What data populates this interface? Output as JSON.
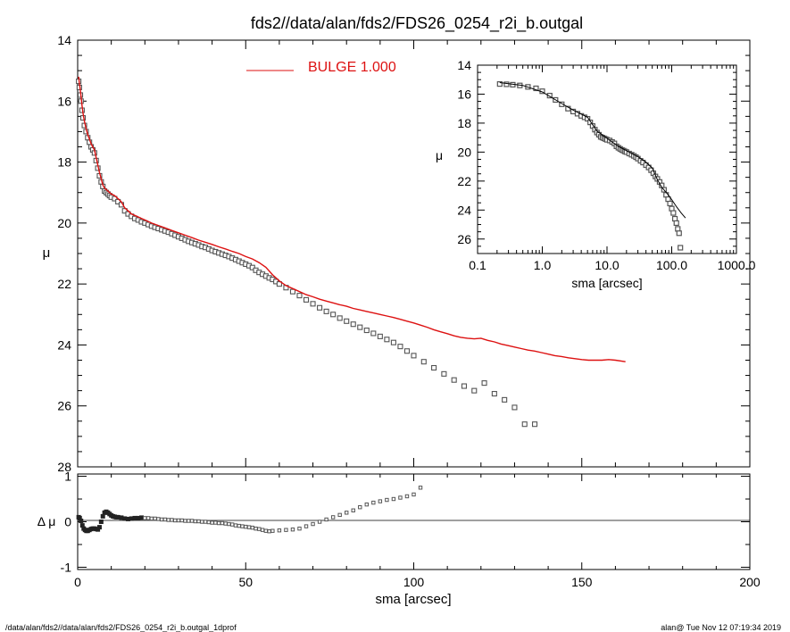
{
  "title": "fds2//data/alan/fds2/FDS26_0254_r2i_b.outgal",
  "footer": {
    "left": "/data/alan/fds2//data/alan/fds2/FDS26_0254_r2i_b.outgal_1dprof",
    "right": "alan@  Tue Nov 12 07:19:34 2019"
  },
  "colors": {
    "model": "#dd1111",
    "data": "#555555",
    "axis": "#000000"
  },
  "chart_data": [
    {
      "id": "main",
      "type": "scatter",
      "xlim": [
        0,
        200
      ],
      "ylim": [
        28,
        14
      ],
      "ylabel": "μ",
      "yticks": [
        "14",
        "16",
        "18",
        "20",
        "22",
        "24",
        "26",
        "28"
      ],
      "legend": {
        "label": "BULGE  1.000",
        "placement": "top-center"
      },
      "series": [
        {
          "name": "data",
          "x": [
            0.3,
            0.5,
            0.8,
            1.0,
            1.3,
            1.6,
            2.0,
            2.5,
            3.0,
            3.5,
            4.0,
            4.5,
            5.0,
            5.5,
            6.0,
            6.5,
            7.0,
            7.5,
            8.0,
            8.5,
            9.0,
            9.5,
            10.0,
            11.0,
            12.0,
            13.0,
            14.0,
            15.0,
            16.0,
            17.0,
            18.0,
            19.0,
            20.0,
            21.0,
            22.0,
            23.0,
            24.0,
            25.0,
            26.0,
            27.0,
            28.0,
            29.0,
            30.0,
            31.0,
            32.0,
            33.0,
            34.0,
            35.0,
            36.0,
            37.0,
            38.0,
            39.0,
            40.0,
            41.0,
            42.0,
            43.0,
            44.0,
            45.0,
            46.0,
            47.0,
            48.0,
            49.0,
            50.0,
            51.0,
            52.0,
            53.0,
            54.0,
            55.0,
            56.0,
            57.0,
            58.0,
            59.0,
            60.0,
            62.0,
            64.0,
            66.0,
            68.0,
            70.0,
            72.0,
            74.0,
            76.0,
            78.0,
            80.0,
            82.0,
            84.0,
            86.0,
            88.0,
            90.0,
            92.0,
            94.0,
            96.0,
            98.0,
            100.0,
            103.0,
            106.0,
            109.0,
            112.0,
            115.0,
            118.0,
            121.0,
            124.0,
            127.0,
            130.0,
            133.0,
            136.0
          ],
          "y": [
            15.35,
            15.55,
            15.8,
            16.0,
            16.3,
            16.55,
            16.8,
            17.0,
            17.2,
            17.35,
            17.5,
            17.6,
            17.7,
            17.95,
            18.2,
            18.45,
            18.65,
            18.8,
            18.95,
            19.0,
            19.05,
            19.1,
            19.15,
            19.2,
            19.3,
            19.4,
            19.6,
            19.7,
            19.78,
            19.85,
            19.9,
            19.96,
            20.0,
            20.05,
            20.1,
            20.14,
            20.18,
            20.22,
            20.26,
            20.3,
            20.35,
            20.4,
            20.45,
            20.5,
            20.55,
            20.6,
            20.64,
            20.68,
            20.72,
            20.77,
            20.8,
            20.85,
            20.9,
            20.94,
            20.98,
            21.02,
            21.06,
            21.1,
            21.15,
            21.2,
            21.25,
            21.3,
            21.35,
            21.4,
            21.46,
            21.55,
            21.62,
            21.68,
            21.74,
            21.8,
            21.85,
            21.92,
            22.0,
            22.12,
            22.25,
            22.38,
            22.52,
            22.65,
            22.78,
            22.9,
            23.0,
            23.12,
            23.22,
            23.32,
            23.42,
            23.52,
            23.62,
            23.72,
            23.82,
            23.92,
            24.05,
            24.2,
            24.35,
            24.55,
            24.75,
            24.95,
            25.15,
            25.35,
            25.5,
            25.25,
            25.6,
            25.8,
            26.05,
            26.6,
            26.6
          ]
        },
        {
          "name": "model",
          "x": [
            0.3,
            0.5,
            0.8,
            1.0,
            1.3,
            1.6,
            2.0,
            2.5,
            3.0,
            3.5,
            4.0,
            4.5,
            5.0,
            5.5,
            6.0,
            6.5,
            7.0,
            7.5,
            8.0,
            8.5,
            9.0,
            9.5,
            10.0,
            11.0,
            12.0,
            13.0,
            14.0,
            15.0,
            16.0,
            17.0,
            18.0,
            19.0,
            20.0,
            22.0,
            24.0,
            26.0,
            28.0,
            30.0,
            32.0,
            34.0,
            36.0,
            38.0,
            40.0,
            42.0,
            44.0,
            46.0,
            48.0,
            50.0,
            52.0,
            54.0,
            56.0,
            58.0,
            60.0,
            62.0,
            64.0,
            66.0,
            68.0,
            70.0,
            72.0,
            74.0,
            76.0,
            78.0,
            80.0,
            82.0,
            84.0,
            86.0,
            88.0,
            90.0,
            92.0,
            94.0,
            96.0,
            98.0,
            100.0,
            102.0,
            104.0,
            106.0,
            108.0,
            110.0,
            112.0,
            114.0,
            116.0,
            118.0,
            120.0,
            122.0,
            124.0,
            126.0,
            128.0,
            130.0,
            132.0,
            134.0,
            136.0,
            138.0,
            140.0,
            142.0,
            144.0,
            146.0,
            148.0,
            150.0,
            152.0,
            154.0,
            156.0,
            158.0,
            160.0,
            163.0
          ],
          "y": [
            15.2,
            15.4,
            15.65,
            15.85,
            16.15,
            16.4,
            16.65,
            16.9,
            17.1,
            17.25,
            17.4,
            17.5,
            17.6,
            17.85,
            18.1,
            18.35,
            18.55,
            18.75,
            18.85,
            18.9,
            18.95,
            19.0,
            19.05,
            19.1,
            19.2,
            19.3,
            19.5,
            19.6,
            19.7,
            19.75,
            19.8,
            19.85,
            19.9,
            20.0,
            20.08,
            20.16,
            20.24,
            20.32,
            20.4,
            20.48,
            20.56,
            20.63,
            20.7,
            20.78,
            20.85,
            20.93,
            21.0,
            21.1,
            21.18,
            21.3,
            21.45,
            21.7,
            21.9,
            22.05,
            22.15,
            22.25,
            22.35,
            22.42,
            22.5,
            22.56,
            22.62,
            22.68,
            22.73,
            22.8,
            22.85,
            22.9,
            22.95,
            23.0,
            23.05,
            23.1,
            23.16,
            23.22,
            23.28,
            23.35,
            23.42,
            23.5,
            23.57,
            23.63,
            23.7,
            23.75,
            23.78,
            23.8,
            23.78,
            23.85,
            23.9,
            23.97,
            24.02,
            24.07,
            24.12,
            24.17,
            24.2,
            24.25,
            24.3,
            24.35,
            24.38,
            24.42,
            24.45,
            24.48,
            24.5,
            24.5,
            24.5,
            24.48,
            24.5,
            24.55
          ]
        }
      ]
    },
    {
      "id": "residual",
      "type": "scatter",
      "xlim": [
        0,
        200
      ],
      "ylim": [
        -1.05,
        1.05
      ],
      "xlabel": "sma [arcsec]",
      "ylabel": "Δ μ",
      "xticks": [
        "0",
        "50",
        "100",
        "150",
        "200"
      ],
      "yticks": [
        "1",
        "0",
        "-1"
      ],
      "zero_line": true,
      "series": [
        {
          "name": "residual",
          "x": [
            0.3,
            0.6,
            1.0,
            1.4,
            1.8,
            2.2,
            2.6,
            3.0,
            3.5,
            4.0,
            4.5,
            5.0,
            5.5,
            6.0,
            6.5,
            7.0,
            7.5,
            8.0,
            8.5,
            9.0,
            9.5,
            10.0,
            10.5,
            11.0,
            11.5,
            12.0,
            13.0,
            14.0,
            15.0,
            16.0,
            17.0,
            18.0,
            19.0,
            20.0,
            21.0,
            22.0,
            23.0,
            24.0,
            25.0,
            26.0,
            27.0,
            28.0,
            29.0,
            30.0,
            31.0,
            32.0,
            33.0,
            34.0,
            35.0,
            36.0,
            37.0,
            38.0,
            39.0,
            40.0,
            41.0,
            42.0,
            43.0,
            44.0,
            45.0,
            46.0,
            47.0,
            48.0,
            49.0,
            50.0,
            51.0,
            52.0,
            53.0,
            54.0,
            55.0,
            56.0,
            57.0,
            58.0,
            60.0,
            62.0,
            64.0,
            66.0,
            68.0,
            70.0,
            72.0,
            74.0,
            76.0,
            78.0,
            80.0,
            82.0,
            84.0,
            86.0,
            88.0,
            90.0,
            92.0,
            94.0,
            96.0,
            98.0,
            100.0,
            102.0
          ],
          "y": [
            0.1,
            0.08,
            0.02,
            -0.08,
            -0.15,
            -0.18,
            -0.2,
            -0.2,
            -0.18,
            -0.16,
            -0.15,
            -0.15,
            -0.16,
            -0.17,
            -0.12,
            0.0,
            0.12,
            0.2,
            0.22,
            0.2,
            0.17,
            0.14,
            0.12,
            0.11,
            0.1,
            0.1,
            0.09,
            0.07,
            0.06,
            0.07,
            0.08,
            0.08,
            0.09,
            0.08,
            0.08,
            0.07,
            0.07,
            0.06,
            0.05,
            0.05,
            0.04,
            0.04,
            0.03,
            0.03,
            0.03,
            0.02,
            0.02,
            0.02,
            0.01,
            0.01,
            0.0,
            0.0,
            -0.01,
            -0.02,
            -0.02,
            -0.03,
            -0.03,
            -0.04,
            -0.05,
            -0.06,
            -0.08,
            -0.09,
            -0.1,
            -0.11,
            -0.12,
            -0.13,
            -0.15,
            -0.16,
            -0.18,
            -0.2,
            -0.21,
            -0.2,
            -0.19,
            -0.18,
            -0.17,
            -0.15,
            -0.1,
            -0.05,
            0.0,
            0.05,
            0.1,
            0.15,
            0.2,
            0.25,
            0.32,
            0.38,
            0.42,
            0.45,
            0.48,
            0.5,
            0.53,
            0.56,
            0.6,
            0.75
          ]
        }
      ]
    },
    {
      "id": "inset",
      "type": "scatter",
      "xscale": "log",
      "xlim": [
        0.1,
        1000
      ],
      "ylim": [
        27,
        14
      ],
      "xlabel": "sma [arcsec]",
      "ylabel": "μ",
      "xticks": [
        "0.1",
        "1.0",
        "10.0",
        "100.0",
        "1000.0"
      ],
      "yticks": [
        "14",
        "16",
        "18",
        "20",
        "22",
        "24",
        "26"
      ],
      "series": [
        {
          "name": "data",
          "x": [
            0.22,
            0.28,
            0.35,
            0.45,
            0.6,
            0.8,
            1.0,
            1.3,
            1.6,
            2.0,
            2.5,
            3.0,
            3.5,
            4.0,
            4.5,
            5.0,
            5.5,
            6.0,
            6.5,
            7.0,
            7.5,
            8.0,
            8.5,
            9.0,
            9.5,
            10.0,
            11.0,
            12.0,
            13.0,
            14.0,
            15.0,
            16.0,
            17.0,
            18.0,
            19.0,
            20.0,
            22.0,
            24.0,
            26.0,
            28.0,
            30.0,
            33.0,
            36.0,
            40.0,
            44.0,
            48.0,
            52.0,
            56.0,
            60.0,
            65.0,
            70.0,
            76.0,
            82.0,
            88.0,
            94.0,
            100.0,
            106.0,
            112.0,
            118.0,
            124.0,
            130.0,
            136.0
          ],
          "y": [
            15.3,
            15.32,
            15.35,
            15.4,
            15.5,
            15.6,
            15.8,
            16.1,
            16.4,
            16.7,
            17.0,
            17.2,
            17.35,
            17.5,
            17.6,
            17.7,
            17.95,
            18.2,
            18.45,
            18.65,
            18.8,
            18.95,
            19.0,
            19.05,
            19.1,
            19.15,
            19.2,
            19.3,
            19.4,
            19.6,
            19.7,
            19.78,
            19.85,
            19.9,
            19.96,
            20.0,
            20.1,
            20.18,
            20.26,
            20.35,
            20.45,
            20.6,
            20.72,
            20.9,
            21.06,
            21.25,
            21.46,
            21.68,
            21.85,
            22.06,
            22.3,
            22.6,
            22.95,
            23.25,
            23.55,
            23.9,
            24.2,
            24.6,
            24.9,
            25.3,
            25.6,
            26.6
          ]
        },
        {
          "name": "model",
          "x": [
            0.22,
            0.5,
            1.0,
            2.0,
            3.0,
            5.0,
            7.0,
            10.0,
            15.0,
            20.0,
            30.0,
            40.0,
            50.0,
            60.0,
            70.0,
            80.0,
            90.0,
            100.0,
            120.0,
            140.0,
            163.0
          ],
          "y": [
            15.2,
            15.4,
            15.85,
            16.65,
            17.1,
            17.6,
            18.55,
            19.05,
            19.6,
            19.9,
            20.32,
            20.7,
            21.1,
            21.9,
            22.42,
            22.73,
            23.0,
            23.28,
            23.8,
            24.2,
            24.55
          ]
        }
      ]
    }
  ]
}
